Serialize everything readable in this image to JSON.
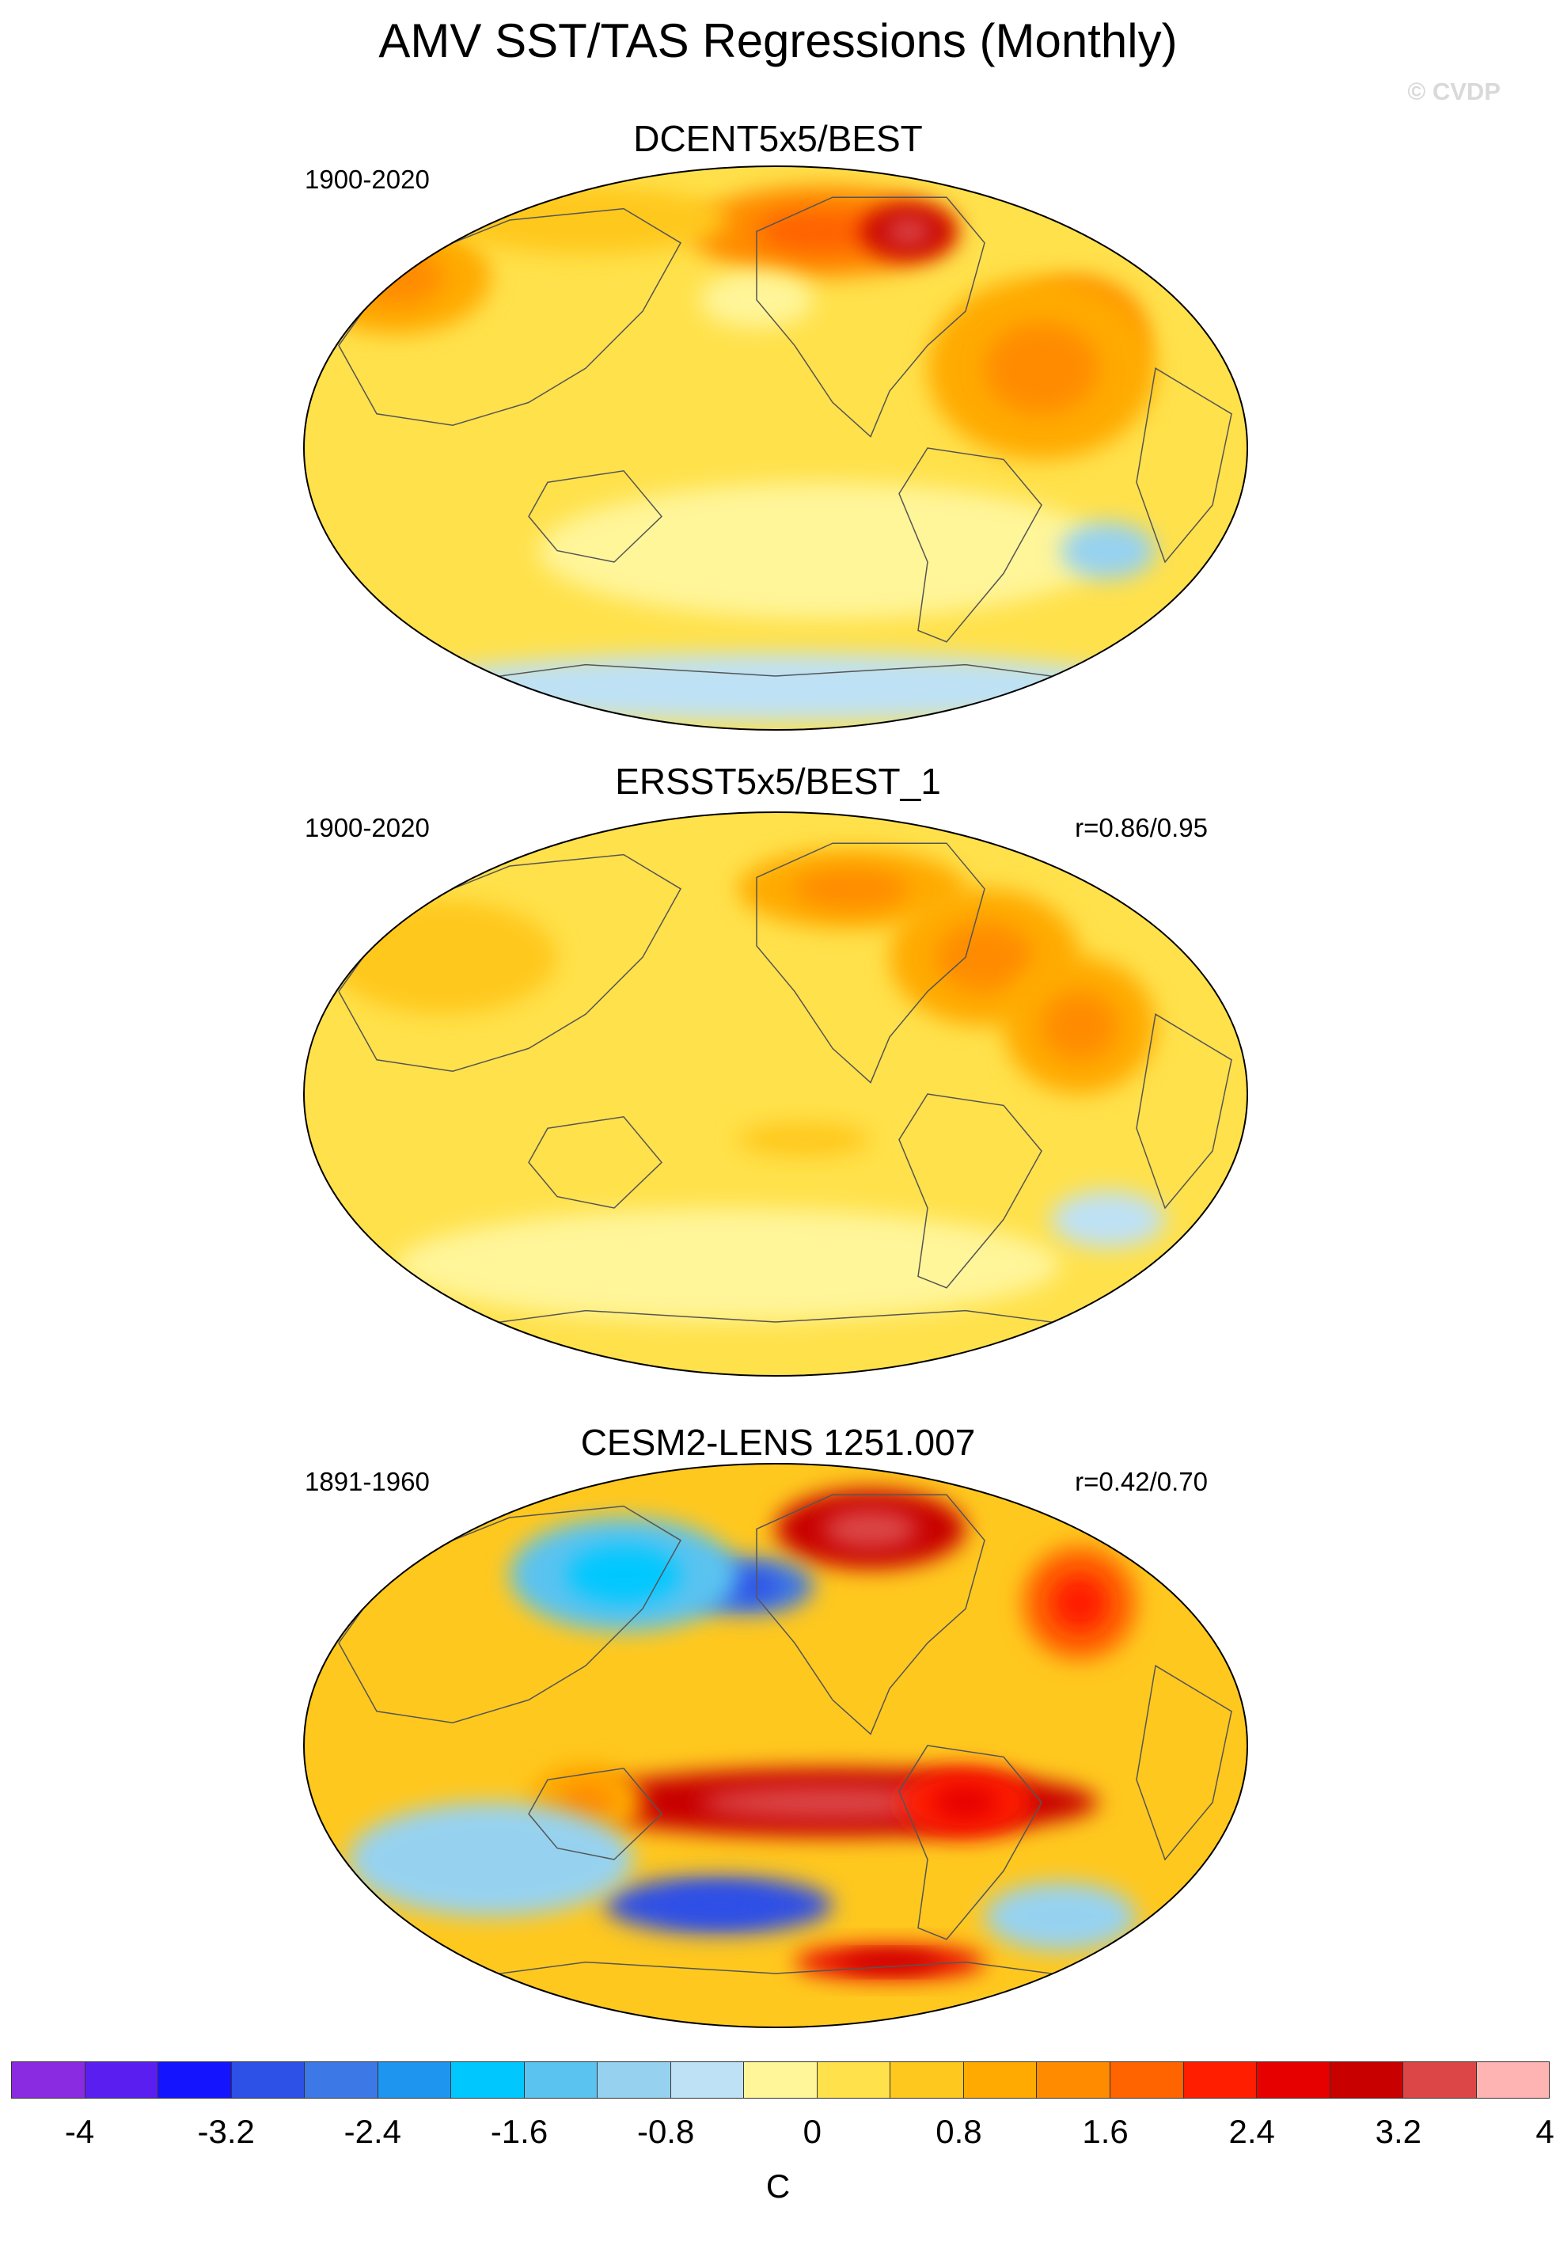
{
  "title": "AMV SST/TAS Regressions (Monthly)",
  "copyright": "© CVDP",
  "panels": [
    {
      "name": "DCENT5x5/BEST",
      "period": "1900-2020",
      "correlation": ""
    },
    {
      "name": "ERSST5x5/BEST_1",
      "period": "1900-2020",
      "correlation": "r=0.86/0.95"
    },
    {
      "name": "CESM2-LENS 1251.007",
      "period": "1891-1960",
      "correlation": "r=0.42/0.70"
    }
  ],
  "colorbar": {
    "units": "C",
    "tick_labels": [
      "-4",
      "-3.2",
      "-2.4",
      "-1.6",
      "-0.8",
      "0",
      "0.8",
      "1.6",
      "2.4",
      "3.2",
      "4"
    ],
    "colors": [
      "#8a2be2",
      "#5a1ef0",
      "#1414ff",
      "#2d50e6",
      "#3c78e6",
      "#1e96f0",
      "#00c8ff",
      "#5ac3f0",
      "#96d2f0",
      "#bee1f5",
      "#fff599",
      "#ffe14b",
      "#ffc81e",
      "#ffaa00",
      "#ff8c00",
      "#ff6400",
      "#ff1e00",
      "#e60000",
      "#c80000",
      "#dc4646",
      "#ffb4b4"
    ]
  },
  "chart_data": {
    "type": "heatmap",
    "projection": "Robinson-like global map, Pacific-centered",
    "variable": "AMV SST/TAS regression",
    "units": "C",
    "levels": [
      -4,
      -3.6,
      -3.2,
      -2.8,
      -2.4,
      -2.0,
      -1.6,
      -1.2,
      -0.8,
      -0.4,
      0,
      0.4,
      0.8,
      1.2,
      1.6,
      2.0,
      2.4,
      2.8,
      3.2,
      3.6,
      4
    ],
    "panels": [
      {
        "name": "DCENT5x5/BEST",
        "background_value": 0.2,
        "features": [
          {
            "lon": 0.55,
            "lat": 0.12,
            "value": 1.6,
            "rx": 0.14,
            "ry": 0.08
          },
          {
            "lon": 0.64,
            "lat": 0.12,
            "value": 3.0,
            "rx": 0.05,
            "ry": 0.05
          },
          {
            "lon": 0.82,
            "lat": 0.3,
            "value": 1.6,
            "rx": 0.07,
            "ry": 0.1
          },
          {
            "lon": 0.78,
            "lat": 0.36,
            "value": 1.2,
            "rx": 0.12,
            "ry": 0.16
          },
          {
            "lon": 0.1,
            "lat": 0.2,
            "value": 1.2,
            "rx": 0.1,
            "ry": 0.1
          },
          {
            "lon": 0.3,
            "lat": 0.1,
            "value": 0.8,
            "rx": 0.15,
            "ry": 0.06
          },
          {
            "lon": 0.48,
            "lat": 0.24,
            "value": -0.2,
            "rx": 0.06,
            "ry": 0.05
          },
          {
            "lon": 0.55,
            "lat": 0.68,
            "value": -0.2,
            "rx": 0.3,
            "ry": 0.12
          },
          {
            "lon": 0.85,
            "lat": 0.68,
            "value": -0.8,
            "rx": 0.05,
            "ry": 0.05
          },
          {
            "lon": 0.5,
            "lat": 0.92,
            "value": -0.4,
            "rx": 0.4,
            "ry": 0.06
          }
        ]
      },
      {
        "name": "ERSST5x5/BEST_1",
        "background_value": 0.2,
        "features": [
          {
            "lon": 0.58,
            "lat": 0.14,
            "value": 1.2,
            "rx": 0.12,
            "ry": 0.07
          },
          {
            "lon": 0.72,
            "lat": 0.26,
            "value": 1.2,
            "rx": 0.1,
            "ry": 0.12
          },
          {
            "lon": 0.82,
            "lat": 0.38,
            "value": 1.2,
            "rx": 0.08,
            "ry": 0.12
          },
          {
            "lon": 0.15,
            "lat": 0.26,
            "value": 0.8,
            "rx": 0.12,
            "ry": 0.1
          },
          {
            "lon": 0.53,
            "lat": 0.58,
            "value": 0.6,
            "rx": 0.07,
            "ry": 0.03
          },
          {
            "lon": 0.45,
            "lat": 0.8,
            "value": -0.2,
            "rx": 0.35,
            "ry": 0.1
          },
          {
            "lon": 0.85,
            "lat": 0.72,
            "value": -0.6,
            "rx": 0.06,
            "ry": 0.05
          }
        ]
      },
      {
        "name": "CESM2-LENS 1251.007",
        "background_value": 0.6,
        "features": [
          {
            "lon": 0.6,
            "lat": 0.12,
            "value": 3.2,
            "rx": 0.1,
            "ry": 0.07
          },
          {
            "lon": 0.56,
            "lat": 0.6,
            "value": 3.0,
            "rx": 0.28,
            "ry": 0.06
          },
          {
            "lon": 0.7,
            "lat": 0.6,
            "value": 2.4,
            "rx": 0.07,
            "ry": 0.06
          },
          {
            "lon": 0.44,
            "lat": 0.78,
            "value": -2.8,
            "rx": 0.12,
            "ry": 0.05
          },
          {
            "lon": 0.47,
            "lat": 0.22,
            "value": -2.4,
            "rx": 0.07,
            "ry": 0.05
          },
          {
            "lon": 0.34,
            "lat": 0.2,
            "value": -1.2,
            "rx": 0.12,
            "ry": 0.1
          },
          {
            "lon": 0.82,
            "lat": 0.25,
            "value": 1.8,
            "rx": 0.06,
            "ry": 0.1
          },
          {
            "lon": 0.3,
            "lat": 0.6,
            "value": 1.2,
            "rx": 0.06,
            "ry": 0.07
          },
          {
            "lon": 0.2,
            "lat": 0.7,
            "value": -0.8,
            "rx": 0.15,
            "ry": 0.1
          },
          {
            "lon": 0.8,
            "lat": 0.8,
            "value": -0.8,
            "rx": 0.08,
            "ry": 0.06
          },
          {
            "lon": 0.62,
            "lat": 0.88,
            "value": 2.6,
            "rx": 0.1,
            "ry": 0.03
          }
        ]
      }
    ]
  }
}
